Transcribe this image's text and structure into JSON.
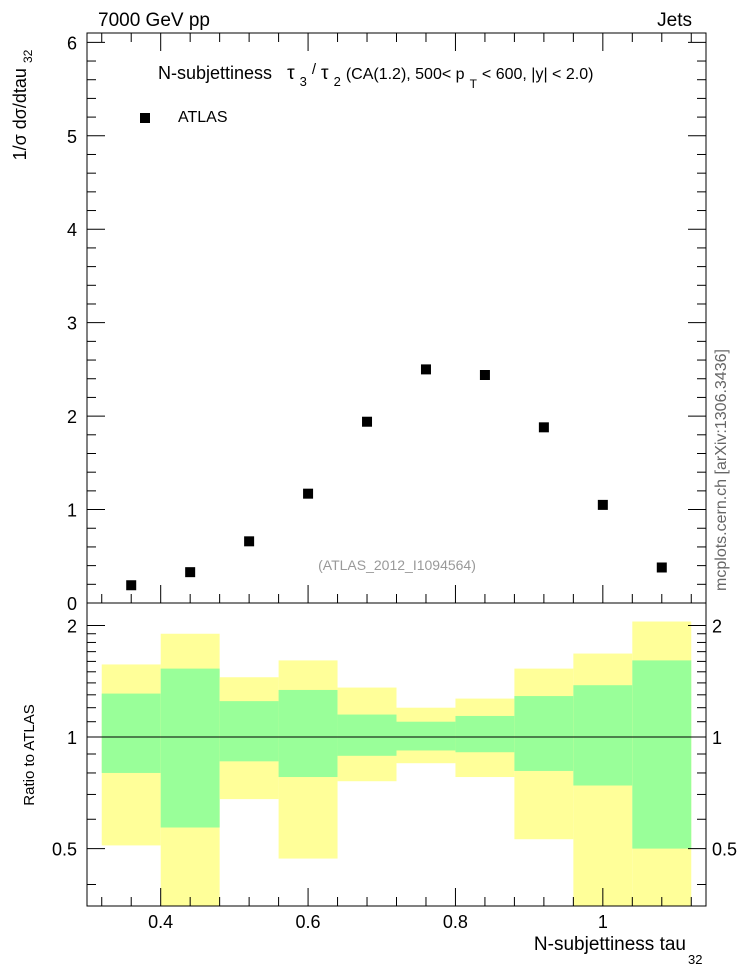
{
  "header": {
    "left": "7000 GeV pp",
    "right": "Jets"
  },
  "side_label": "mcplots.cern.ch [arXiv:1306.3436]",
  "chart_data": [
    {
      "type": "scatter",
      "title": "N-subjettiness  τ3/τ2 (CA(1.2), 500< pT < 600, |y| < 2.0)",
      "title_parts": {
        "prefix": "N-subjettiness",
        "tau3": "τ",
        "tau3_sub": "3",
        "slash": "/",
        "tau2": "τ",
        "tau2_sub": "2",
        "mid": " (CA(1.2), 500< p",
        "pt_sub": "T",
        "suffix": " < 600, |y| < 2.0)"
      },
      "ylabel": "1/σ dσ/dtau",
      "ylabel_sub": "32",
      "xlim": [
        0.3,
        1.14
      ],
      "ylim": [
        0,
        6.1
      ],
      "yticks": [
        0,
        1,
        2,
        3,
        4,
        5,
        6
      ],
      "legend": {
        "position": "top-left",
        "entries": [
          {
            "label": "ATLAS",
            "marker": "square",
            "color": "#000000"
          }
        ]
      },
      "watermark": "(ATLAS_2012_I1094564)",
      "series": [
        {
          "name": "ATLAS",
          "x": [
            0.36,
            0.44,
            0.52,
            0.6,
            0.68,
            0.76,
            0.84,
            0.92,
            1.0,
            1.08
          ],
          "y": [
            0.19,
            0.33,
            0.66,
            1.17,
            1.94,
            2.5,
            2.44,
            1.88,
            1.05,
            0.38
          ]
        }
      ]
    },
    {
      "type": "area",
      "ylabel": "Ratio to ATLAS",
      "xlabel": "N-subjettiness tau",
      "xlabel_sub": "32",
      "xlim": [
        0.3,
        1.14
      ],
      "ylim": [
        0.35,
        2.3
      ],
      "ylog": true,
      "yticks_labeled": [
        0.5,
        1,
        2
      ],
      "xticks_labeled": [
        0.4,
        0.6,
        0.8,
        1.0
      ],
      "xtick_labels": [
        "0.4",
        "0.6",
        "0.8",
        "1"
      ],
      "bin_edges": [
        0.32,
        0.4,
        0.48,
        0.56,
        0.64,
        0.72,
        0.8,
        0.88,
        0.96,
        1.04,
        1.12
      ],
      "band_colors": {
        "outer": "#ffff99",
        "inner": "#99ff99",
        "line": "#000000"
      },
      "outer_band": {
        "low": [
          0.51,
          0.35,
          0.68,
          0.47,
          0.76,
          0.85,
          0.78,
          0.53,
          0.35,
          0.35
        ],
        "high": [
          1.57,
          1.9,
          1.45,
          1.61,
          1.36,
          1.2,
          1.27,
          1.53,
          1.68,
          2.05
        ]
      },
      "inner_band": {
        "low": [
          0.8,
          0.57,
          0.86,
          0.78,
          0.89,
          0.92,
          0.91,
          0.81,
          0.74,
          0.5
        ],
        "high": [
          1.31,
          1.53,
          1.25,
          1.34,
          1.15,
          1.1,
          1.14,
          1.29,
          1.38,
          1.61
        ]
      },
      "reference": 1
    }
  ]
}
